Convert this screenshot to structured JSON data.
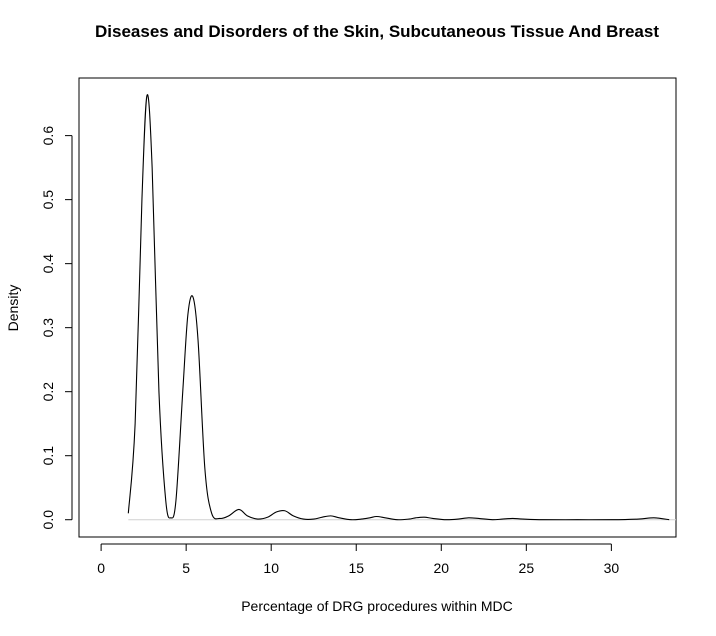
{
  "chart_data": {
    "type": "line",
    "title": "Diseases and Disorders of the Skin, Subcutaneous Tissue And Breast",
    "xlabel": "Percentage of DRG procedures within MDC",
    "ylabel": "Density",
    "xlim": [
      -1.3,
      33.8
    ],
    "ylim": [
      -0.027,
      0.69
    ],
    "x_ticks": [
      0,
      5,
      10,
      15,
      20,
      25,
      30
    ],
    "x_tick_labels": [
      "0",
      "5",
      "10",
      "15",
      "20",
      "25",
      "30"
    ],
    "y_ticks": [
      0.0,
      0.1,
      0.2,
      0.3,
      0.4,
      0.5,
      0.6
    ],
    "y_tick_labels": [
      "0.0",
      "0.1",
      "0.2",
      "0.3",
      "0.4",
      "0.5",
      "0.6"
    ],
    "grid": false,
    "series": [
      {
        "x": [
          1.6,
          2.0,
          2.4,
          2.7,
          3.0,
          3.4,
          3.8,
          4.1,
          4.4,
          4.8,
          5.1,
          5.4,
          5.7,
          6.1,
          6.5,
          7.0,
          7.5,
          8.1,
          8.6,
          9.2,
          9.8,
          10.3,
          10.8,
          11.3,
          11.9,
          12.5,
          13.0,
          13.5,
          14.0,
          14.7,
          15.3,
          15.8,
          16.2,
          16.7,
          17.4,
          18.1,
          18.5,
          19.0,
          19.5,
          20.3,
          21.0,
          21.6,
          22.2,
          23.0,
          23.6,
          24.2,
          24.8,
          26.0,
          28.0,
          30.0,
          31.6,
          32.5,
          33.4
        ],
        "values": [
          0.01,
          0.15,
          0.5,
          0.663,
          0.55,
          0.2,
          0.03,
          0.003,
          0.03,
          0.2,
          0.32,
          0.348,
          0.28,
          0.08,
          0.01,
          0.002,
          0.006,
          0.016,
          0.006,
          0.001,
          0.004,
          0.012,
          0.014,
          0.006,
          0.001,
          0.001,
          0.004,
          0.006,
          0.003,
          0.0,
          0.001,
          0.003,
          0.005,
          0.003,
          0.0,
          0.001,
          0.003,
          0.004,
          0.002,
          0.0,
          0.001,
          0.003,
          0.002,
          0.0,
          0.001,
          0.002,
          0.001,
          0.0,
          0.0,
          0.0,
          0.001,
          0.003,
          0.0
        ]
      }
    ]
  }
}
